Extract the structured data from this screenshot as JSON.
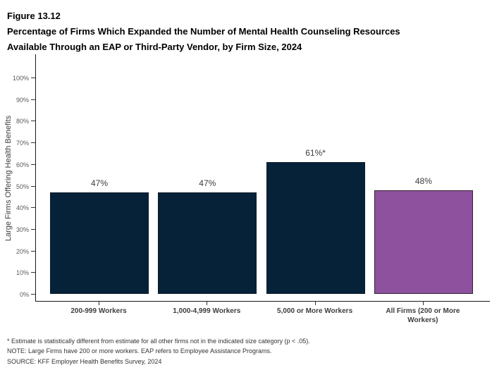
{
  "figure": {
    "label": "Figure 13.12",
    "title_lines": [
      "Percentage of Firms Which Expanded the Number of Mental Health Counseling Resources",
      "Available Through an EAP or Third-Party Vendor, by Firm Size, 2024"
    ]
  },
  "chart_data": {
    "type": "bar",
    "title": "Percentage of Firms Which Expanded the Number of Mental Health Counseling Resources Available Through an EAP or Third-Party Vendor, by Firm Size, 2024",
    "categories": [
      "200-999 Workers",
      "1,000-4,999 Workers",
      "5,000 or More Workers",
      "All Firms (200 or More Workers)"
    ],
    "values": [
      47,
      47,
      61,
      48
    ],
    "value_labels": [
      "47%",
      "47%",
      "61%*",
      "48%"
    ],
    "bar_colors": [
      "#052239",
      "#052239",
      "#052239",
      "#8E519E"
    ],
    "bar_border_colors": [
      "#0d1b29",
      "#0d1b29",
      "#0d1b29",
      "#2e2430"
    ],
    "xlabel": "",
    "ylabel": "Large Firms Offering Health Benefits",
    "ylim": [
      0,
      100
    ],
    "ytick_step": 10,
    "ytick_labels": [
      "0%",
      "10%",
      "20%",
      "30%",
      "40%",
      "50%",
      "60%",
      "70%",
      "80%",
      "90%",
      "100%"
    ],
    "grid": false,
    "legend": false,
    "axis_color": "#1a1a1a"
  },
  "footnotes": [
    "* Estimate is statistically different from estimate for all other firms not in the indicated size category (p < .05).",
    "NOTE: Large Firms have 200 or more workers.  EAP refers to Employee Assistance Programs.",
    "SOURCE: KFF Employer Health Benefits Survey, 2024"
  ]
}
